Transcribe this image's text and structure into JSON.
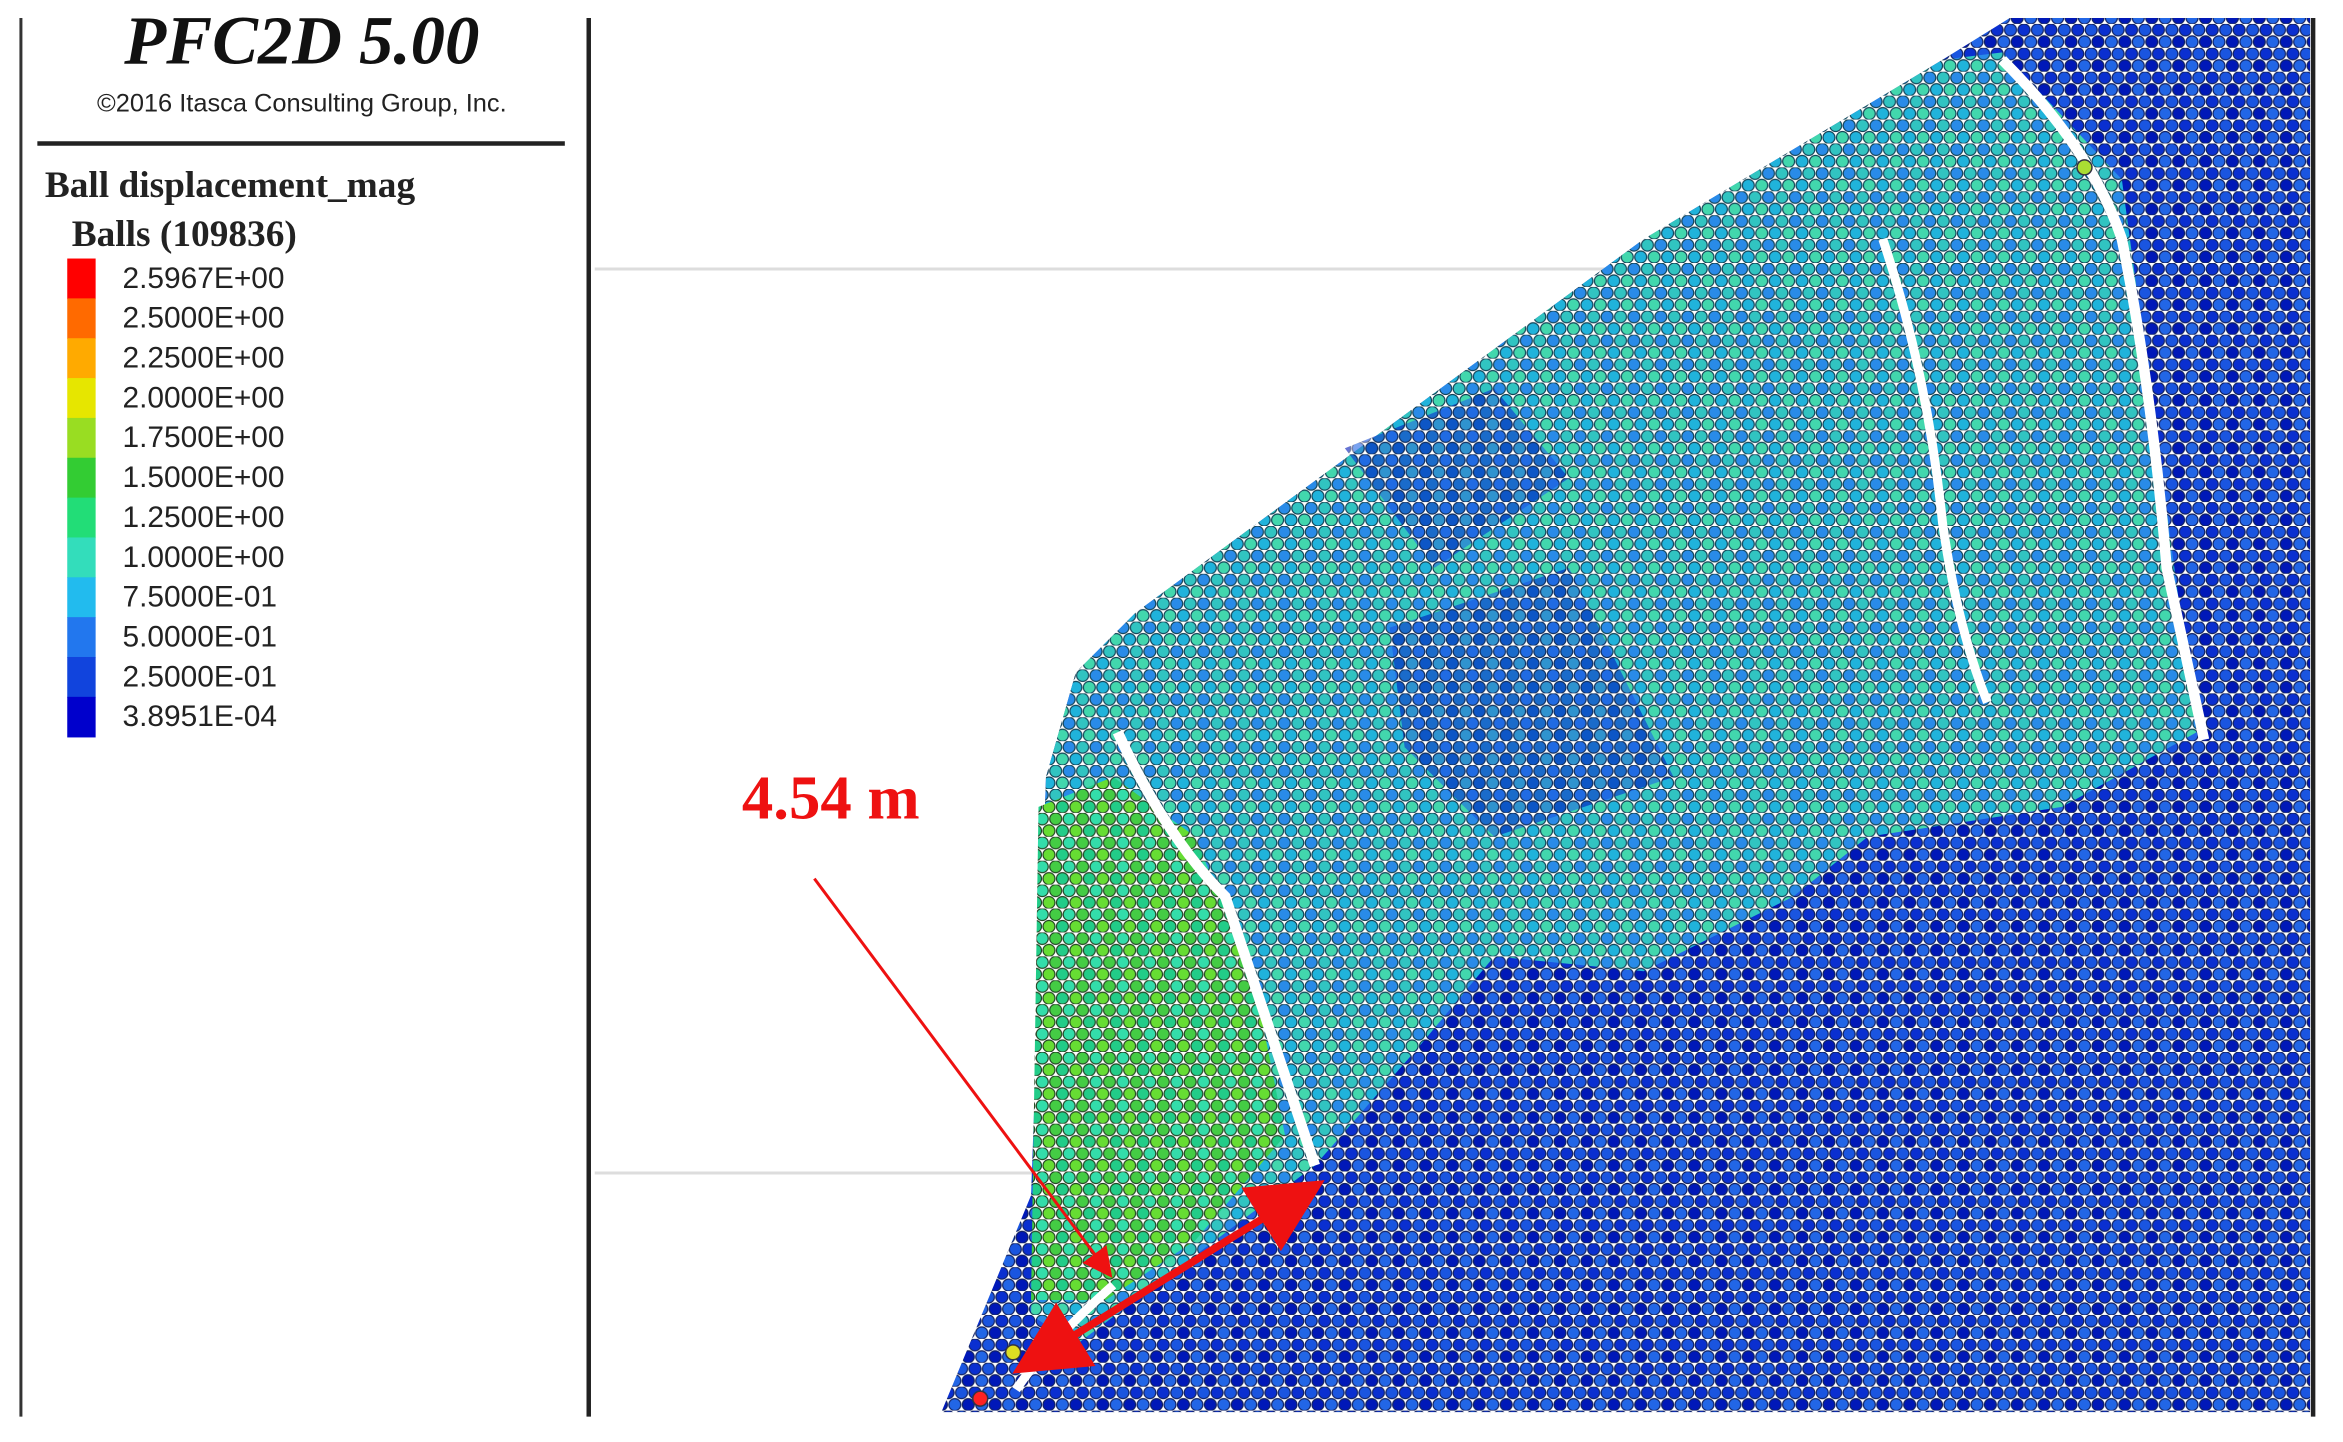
{
  "header": {
    "title": "PFC2D 5.00",
    "copyright": "©2016 Itasca Consulting Group, Inc."
  },
  "legend": {
    "title": "Ball displacement_mag",
    "subtitle": "Balls (109836)",
    "items": [
      {
        "label": "2.5967E+00",
        "color": "#ff0000"
      },
      {
        "label": "2.5000E+00",
        "color": "#ff6a00"
      },
      {
        "label": "2.2500E+00",
        "color": "#ffaa00"
      },
      {
        "label": "2.0000E+00",
        "color": "#e6e600"
      },
      {
        "label": "1.7500E+00",
        "color": "#99dd22"
      },
      {
        "label": "1.5000E+00",
        "color": "#33cc33"
      },
      {
        "label": "1.2500E+00",
        "color": "#22dd77"
      },
      {
        "label": "1.0000E+00",
        "color": "#33ddbb"
      },
      {
        "label": "7.5000E-01",
        "color": "#22bbee"
      },
      {
        "label": "5.0000E-01",
        "color": "#2277ee"
      },
      {
        "label": "2.5000E-01",
        "color": "#1144dd"
      },
      {
        "label": "3.8951E-04",
        "color": "#0000cc"
      }
    ]
  },
  "annotation": {
    "label": "4.54 m"
  }
}
